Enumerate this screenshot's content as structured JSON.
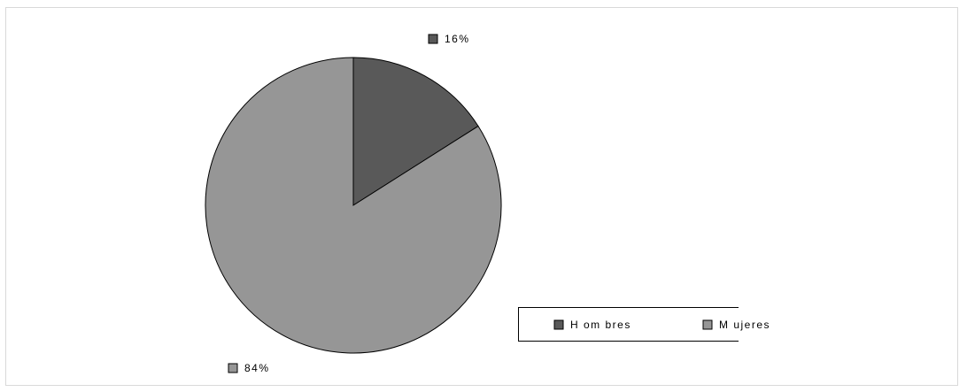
{
  "chart_data": {
    "type": "pie",
    "title": "",
    "categories": [
      "Hombres",
      "Mujeres"
    ],
    "values": [
      16,
      84
    ],
    "unit": "%",
    "series": [
      {
        "values": [
          16,
          84
        ]
      }
    ],
    "data_labels": [
      "16%",
      "84%"
    ],
    "legend": {
      "placement": "right",
      "entries": [
        "H om bres",
        "M ujeres"
      ]
    },
    "colors": [
      "#595959",
      "#969696"
    ]
  }
}
